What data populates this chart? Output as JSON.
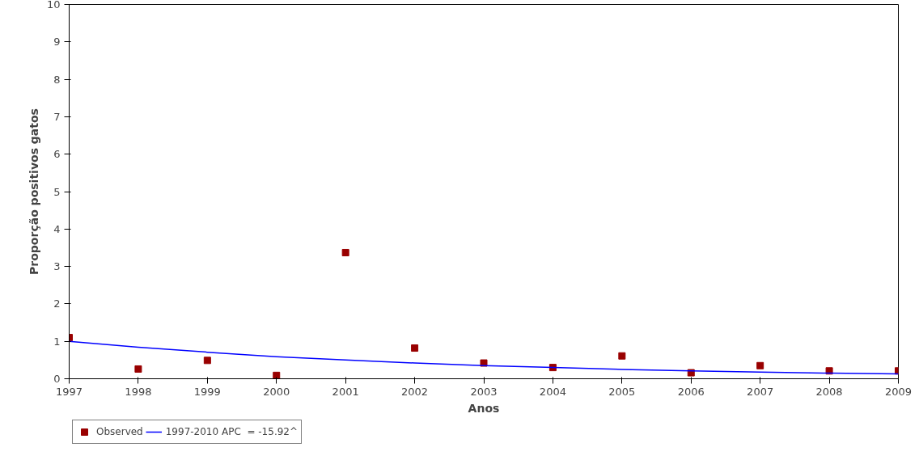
{
  "chart_data": {
    "type": "scatter",
    "xlabel": "Anos",
    "ylabel": "Proporção positivos gatos",
    "xlim": [
      1997,
      2009
    ],
    "ylim": [
      0,
      10
    ],
    "xticks": [
      1997,
      1998,
      1999,
      2000,
      2001,
      2002,
      2003,
      2004,
      2005,
      2006,
      2007,
      2008,
      2009
    ],
    "yticks": [
      0,
      1,
      2,
      3,
      4,
      5,
      6,
      7,
      8,
      9,
      10
    ],
    "grid": false,
    "legend": "bottom left",
    "series": [
      {
        "name": "Observed",
        "type": "scatter",
        "marker": "square",
        "color": "#990000",
        "x": [
          1997,
          1998,
          1999,
          2000,
          2001,
          2002,
          2003,
          2004,
          2005,
          2006,
          2007,
          2008,
          2009
        ],
        "values": [
          1.1,
          0.26,
          0.49,
          0.09,
          3.37,
          0.82,
          0.42,
          0.3,
          0.61,
          0.16,
          0.35,
          0.21,
          0.21
        ]
      },
      {
        "name": "1997-2010 APC  = -15.92^",
        "type": "line",
        "color": "#0000ff",
        "line_style": "solid",
        "x": [
          1997,
          1998,
          1999,
          2000,
          2001,
          2002,
          2003,
          2004,
          2005,
          2006,
          2007,
          2008,
          2009
        ],
        "values": [
          1.0,
          0.84,
          0.71,
          0.59,
          0.5,
          0.42,
          0.35,
          0.3,
          0.25,
          0.21,
          0.18,
          0.15,
          0.13
        ]
      }
    ]
  }
}
